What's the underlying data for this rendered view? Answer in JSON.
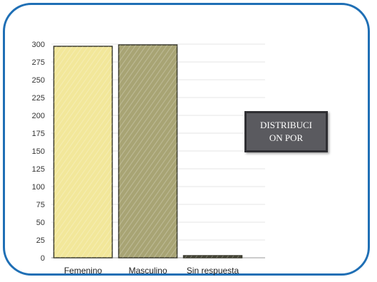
{
  "chart_data": {
    "type": "bar",
    "categories": [
      "Femenino",
      "Masculino",
      "Sin respuesta"
    ],
    "values": [
      297,
      299,
      3
    ],
    "ylim": [
      0,
      300
    ],
    "yticks": [
      0,
      25,
      50,
      75,
      100,
      125,
      150,
      175,
      200,
      225,
      250,
      275,
      300
    ],
    "grid": true,
    "colors": [
      "#f2e79a",
      "#a8a474",
      "#4a4a3a"
    ]
  },
  "annotation": {
    "text": "DISTRIBUCION POR"
  }
}
